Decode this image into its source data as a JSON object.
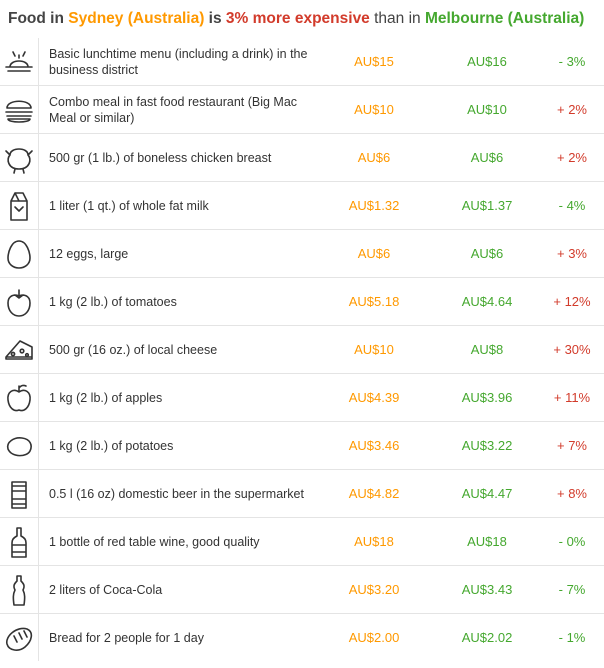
{
  "title": {
    "prefix": "Food in ",
    "city_a": "Sydney (Australia)",
    "is": " is ",
    "percent": "3% more expensive",
    "than": " than in ",
    "city_b": "Melbourne (Australia)"
  },
  "colors": {
    "city_a": "#ff9900",
    "city_b": "#45a82f",
    "increase": "#d23b2b",
    "decrease": "#45a82f"
  },
  "rows": [
    {
      "icon": "lunch-plate-icon",
      "name": "Basic lunchtime menu (including a drink) in the business district",
      "price_a": "AU$15",
      "price_b": "AU$16",
      "diff": "- 3%"
    },
    {
      "icon": "burger-icon",
      "name": "Combo meal in fast food restaurant (Big Mac Meal or similar)",
      "price_a": "AU$10",
      "price_b": "AU$10",
      "diff": "+ 2%"
    },
    {
      "icon": "chicken-icon",
      "name": "500 gr (1 lb.) of boneless chicken breast",
      "price_a": "AU$6",
      "price_b": "AU$6",
      "diff": "+ 2%"
    },
    {
      "icon": "milk-carton-icon",
      "name": "1 liter (1 qt.) of whole fat milk",
      "price_a": "AU$1.32",
      "price_b": "AU$1.37",
      "diff": "- 4%"
    },
    {
      "icon": "egg-icon",
      "name": "12 eggs, large",
      "price_a": "AU$6",
      "price_b": "AU$6",
      "diff": "+ 3%"
    },
    {
      "icon": "tomato-icon",
      "name": "1 kg (2 lb.) of tomatoes",
      "price_a": "AU$5.18",
      "price_b": "AU$4.64",
      "diff": "+ 12%"
    },
    {
      "icon": "cheese-icon",
      "name": "500 gr (16 oz.) of local cheese",
      "price_a": "AU$10",
      "price_b": "AU$8",
      "diff": "+ 30%"
    },
    {
      "icon": "apple-icon",
      "name": "1 kg (2 lb.) of apples",
      "price_a": "AU$4.39",
      "price_b": "AU$3.96",
      "diff": "+ 11%"
    },
    {
      "icon": "potato-icon",
      "name": "1 kg (2 lb.) of potatoes",
      "price_a": "AU$3.46",
      "price_b": "AU$3.22",
      "diff": "+ 7%"
    },
    {
      "icon": "beer-can-icon",
      "name": "0.5 l (16 oz) domestic beer in the supermarket",
      "price_a": "AU$4.82",
      "price_b": "AU$4.47",
      "diff": "+ 8%"
    },
    {
      "icon": "wine-bottle-icon",
      "name": "1 bottle of red table wine, good quality",
      "price_a": "AU$18",
      "price_b": "AU$18",
      "diff": "- 0%"
    },
    {
      "icon": "cola-bottle-icon",
      "name": "2 liters of Coca-Cola",
      "price_a": "AU$3.20",
      "price_b": "AU$3.43",
      "diff": "- 7%"
    },
    {
      "icon": "bread-icon",
      "name": "Bread for 2 people for 1 day",
      "price_a": "AU$2.00",
      "price_b": "AU$2.02",
      "diff": "- 1%"
    }
  ]
}
